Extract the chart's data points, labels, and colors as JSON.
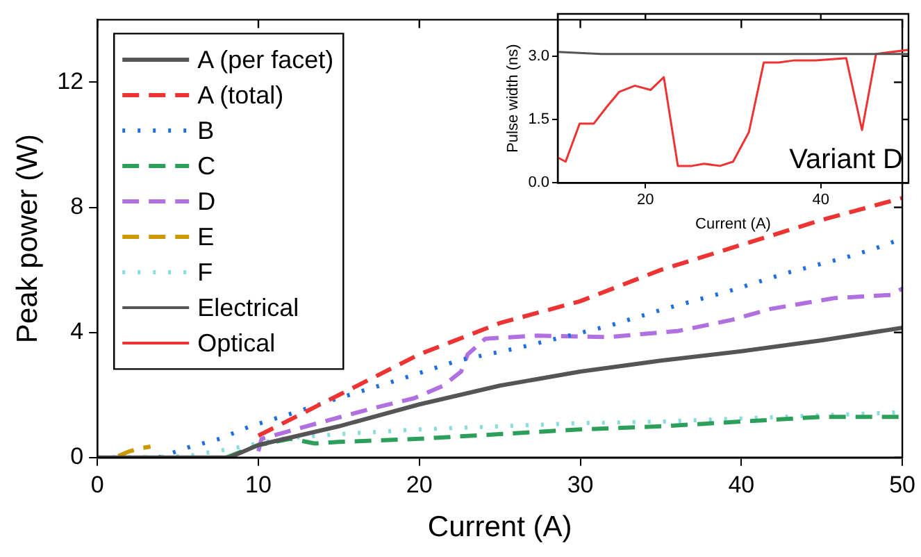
{
  "chart_data": [
    {
      "type": "line",
      "xlabel": "Current (A)",
      "ylabel": "Peak power (W)",
      "xlim": [
        0,
        50
      ],
      "xticks": [
        0,
        10,
        20,
        30,
        40,
        50
      ],
      "ylim": [
        0,
        14
      ],
      "yticks": [
        0,
        4,
        8,
        12
      ],
      "grid": false,
      "legend": "top left",
      "marker": "none",
      "series": [
        {
          "name": "A (per facet)",
          "color": "#555555",
          "line_style": "solid",
          "x": [
            0,
            8.2,
            10,
            15,
            20,
            25,
            30,
            35,
            40,
            45,
            50
          ],
          "values": [
            0,
            0,
            0.4,
            1.0,
            1.7,
            2.3,
            2.75,
            3.1,
            3.4,
            3.75,
            4.15
          ]
        },
        {
          "name": "A (total)",
          "color": "#ee3333",
          "line_style": "dashed",
          "x": [
            10,
            15,
            20,
            25,
            30,
            35,
            40,
            45,
            50
          ],
          "values": [
            0.7,
            2.0,
            3.3,
            4.3,
            5.0,
            6.0,
            6.8,
            7.6,
            8.3
          ]
        },
        {
          "name": "B",
          "color": "#1f6fe0",
          "line_style": "dotted",
          "x": [
            0,
            3.8,
            5.8,
            7.6,
            9.5,
            11.4,
            15,
            18.8,
            20.6,
            22.4,
            26.1,
            31.7,
            35.2,
            39.1,
            42.8,
            46.5,
            48.4,
            50
          ],
          "values": [
            0,
            0,
            0.35,
            0.6,
            1.0,
            1.3,
            1.9,
            2.5,
            2.8,
            3.1,
            3.5,
            4.2,
            4.75,
            5.3,
            5.9,
            6.4,
            6.7,
            7.0
          ]
        },
        {
          "name": "C",
          "color": "#2ca05a",
          "line_style": "dashed",
          "x": [
            8,
            10,
            12,
            13.5,
            15,
            20,
            25,
            30,
            35,
            40,
            45,
            50
          ],
          "values": [
            0,
            0.4,
            0.6,
            0.45,
            0.5,
            0.6,
            0.75,
            0.9,
            1.0,
            1.15,
            1.3,
            1.3
          ]
        },
        {
          "name": "D",
          "color": "#b070e0",
          "line_style": "dashed",
          "x": [
            10,
            10.2,
            14.4,
            17.3,
            19.7,
            21.5,
            22.6,
            23,
            24.1,
            27.3,
            31.7,
            36.1,
            39.4,
            41.8,
            45.8,
            49.3,
            50
          ],
          "values": [
            0.2,
            0.6,
            1.2,
            1.6,
            1.9,
            2.3,
            2.75,
            3.3,
            3.8,
            3.9,
            3.85,
            4.05,
            4.4,
            4.75,
            5.1,
            5.2,
            5.4
          ]
        },
        {
          "name": "E",
          "color": "#cc9900",
          "line_style": "dashed",
          "x": [
            1.3,
            2,
            2.7,
            3.3
          ],
          "values": [
            0.05,
            0.2,
            0.3,
            0.35
          ]
        },
        {
          "name": "F",
          "color": "#88dddd",
          "line_style": "dotted",
          "x": [
            3,
            5.6,
            8.5,
            11.4,
            15,
            20,
            25,
            30,
            35,
            40,
            45,
            50
          ],
          "values": [
            0,
            0.05,
            0.3,
            0.6,
            0.75,
            0.9,
            1.0,
            1.1,
            1.15,
            1.25,
            1.35,
            1.45
          ]
        }
      ]
    },
    {
      "type": "line",
      "xlabel": "Current (A)",
      "ylabel": "Pulse width (ns)",
      "xlim": [
        10,
        50
      ],
      "xticks": [
        20,
        40
      ],
      "ylim": [
        0,
        4
      ],
      "yticks": [
        {
          "value": 0,
          "label": "0.0"
        },
        {
          "value": 1.5,
          "label": "1.5"
        },
        {
          "value": 3,
          "label": "3.0"
        }
      ],
      "grid": false,
      "marker": "none",
      "annotations": [
        "Variant D"
      ],
      "series": [
        {
          "name": "Electrical",
          "color": "#555555",
          "line_style": "solid",
          "x": [
            10,
            15,
            20,
            25,
            30,
            35,
            40,
            45,
            50
          ],
          "values": [
            3.1,
            3.05,
            3.05,
            3.05,
            3.05,
            3.05,
            3.05,
            3.05,
            3.05
          ]
        },
        {
          "name": "Optical",
          "color": "#ee3333",
          "line_style": "solid",
          "x": [
            10,
            10.9,
            12.5,
            14.1,
            15.6,
            17,
            18.8,
            20.6,
            22.1,
            23.7,
            25.3,
            26.7,
            28.5,
            30,
            31.8,
            33.5,
            35.2,
            37,
            39.4,
            42.9,
            44.7,
            46.3,
            50
          ],
          "values": [
            0.6,
            0.5,
            1.4,
            1.4,
            1.8,
            2.15,
            2.3,
            2.2,
            2.5,
            0.4,
            0.4,
            0.45,
            0.4,
            0.5,
            1.2,
            2.85,
            2.85,
            2.9,
            2.9,
            2.95,
            1.25,
            3.05,
            3.15
          ]
        }
      ]
    }
  ]
}
